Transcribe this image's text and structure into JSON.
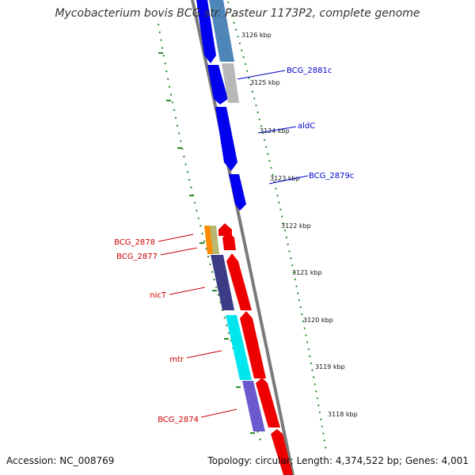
{
  "title": "Mycobacterium bovis BCG str. Pasteur 1173P2, complete genome",
  "accession": "Accession: NC_008769",
  "summary": "Topology: circular; Length: 4,374,522 bp; Genes: 4,001",
  "colors": {
    "backbone": "#8a8a8a",
    "tick_dots": "#2a8a2a",
    "forward_labels": "#0000cc",
    "reverse_labels": "#cc0000"
  },
  "ticks": [
    "3126 kbp",
    "3125 kbp",
    "3124 kbp",
    "3123 kbp",
    "3122 kbp",
    "3121 kbp",
    "3120 kbp",
    "3119 kbp",
    "3118 kbp"
  ],
  "gene_labels": {
    "forward": [
      "BCG_2881c",
      "aldC",
      "BCG_2879c"
    ],
    "reverse": [
      "BCG_2878",
      "BCG_2877",
      "nicT",
      "mtr",
      "BCG_2874"
    ]
  }
}
